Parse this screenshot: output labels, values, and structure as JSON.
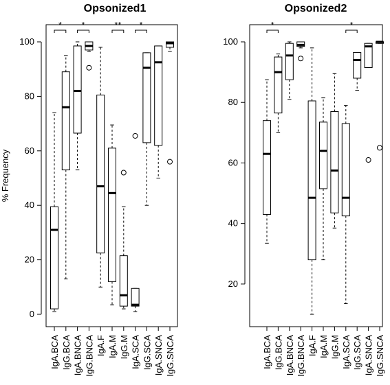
{
  "chart_data": [
    {
      "type": "boxplot",
      "title": "Opsonized1",
      "xlabel": "",
      "ylabel": "% Frequency",
      "ylim": [
        0,
        100
      ],
      "yticks": [
        0,
        20,
        40,
        60,
        80,
        100
      ],
      "categories": [
        "IgA.BCA",
        "IgG.BCA",
        "IgA.BNCA",
        "IgG.BNCA",
        "IgA.F",
        "IgA.M",
        "IgG.M",
        "IgA.SCA",
        "IgG.SCA",
        "IgA.SNCA",
        "IgG.SNCA"
      ],
      "boxes": [
        {
          "category": "IgA.BCA",
          "whisker_low": 1,
          "q1": 2,
          "median": 31,
          "q3": 39.5,
          "whisker_high": 74,
          "outliers": []
        },
        {
          "category": "IgG.BCA",
          "whisker_low": 13,
          "q1": 53,
          "median": 76,
          "q3": 89,
          "whisker_high": 95,
          "outliers": []
        },
        {
          "category": "IgA.BNCA",
          "whisker_low": 53,
          "q1": 66.5,
          "median": 82,
          "q3": 98.5,
          "whisker_high": 100,
          "outliers": []
        },
        {
          "category": "IgG.BNCA",
          "whisker_low": 96.5,
          "q1": 97,
          "median": 98.5,
          "q3": 100,
          "whisker_high": 100,
          "outliers": [
            90.5
          ]
        },
        {
          "category": "IgA.F",
          "whisker_low": 10,
          "q1": 22.5,
          "median": 47,
          "q3": 80.5,
          "whisker_high": 98,
          "outliers": []
        },
        {
          "category": "IgA.M",
          "whisker_low": 3.5,
          "q1": 12,
          "median": 44.5,
          "q3": 61,
          "whisker_high": 69.5,
          "outliers": []
        },
        {
          "category": "IgG.M",
          "whisker_low": 2,
          "q1": 3,
          "median": 7,
          "q3": 21.5,
          "whisker_high": 39.5,
          "outliers": [
            52
          ]
        },
        {
          "category": "IgA.SCA",
          "whisker_low": 1,
          "q1": 3,
          "median": 3.5,
          "q3": 9.5,
          "whisker_high": 9.5,
          "outliers": [
            65.5
          ]
        },
        {
          "category": "IgG.SCA",
          "whisker_low": 40,
          "q1": 63,
          "median": 90.5,
          "q3": 96,
          "whisker_high": 96,
          "outliers": []
        },
        {
          "category": "IgA.SNCA",
          "whisker_low": 50,
          "q1": 62,
          "median": 92.5,
          "q3": 98.5,
          "whisker_high": 98.5,
          "outliers": []
        },
        {
          "category": "IgG.SNCA",
          "whisker_low": 96.5,
          "q1": 98,
          "median": 99.5,
          "q3": 100,
          "whisker_high": 100,
          "outliers": [
            56
          ]
        }
      ],
      "annotations": [
        {
          "from": "IgA.BCA",
          "to": "IgG.BCA",
          "label": "*"
        },
        {
          "from": "IgA.BNCA",
          "to": "IgG.BNCA",
          "label": "*"
        },
        {
          "from": "IgA.M",
          "to": "IgG.M",
          "label": "**"
        },
        {
          "from": "IgA.SCA",
          "to": "IgG.SCA",
          "label": "*"
        }
      ]
    },
    {
      "type": "boxplot",
      "title": "Opsonized2",
      "xlabel": "",
      "ylabel": "",
      "ylim": [
        10,
        100
      ],
      "yticks": [
        20,
        40,
        60,
        80,
        100
      ],
      "categories": [
        "IgA.BCA",
        "IgG.BCA",
        "IgA.BNCA",
        "IgG.BNCA",
        "IgA.F",
        "IgA.M",
        "IgG.M",
        "IgA.SCA",
        "IgG.SCA",
        "IgA.SNCA",
        "IgG.SNCA"
      ],
      "boxes": [
        {
          "category": "IgA.BCA",
          "whisker_low": 33.5,
          "q1": 43,
          "median": 63,
          "q3": 74,
          "whisker_high": 87.5,
          "outliers": []
        },
        {
          "category": "IgG.BCA",
          "whisker_low": 70,
          "q1": 76.5,
          "median": 90,
          "q3": 95,
          "whisker_high": 96,
          "outliers": []
        },
        {
          "category": "IgA.BNCA",
          "whisker_low": 81,
          "q1": 87.5,
          "median": 95.5,
          "q3": 99.5,
          "whisker_high": 100,
          "outliers": []
        },
        {
          "category": "IgG.BNCA",
          "whisker_low": 98,
          "q1": 98.5,
          "median": 99,
          "q3": 100,
          "whisker_high": 100,
          "outliers": [
            94.5
          ]
        },
        {
          "category": "IgA.F",
          "whisker_low": 10,
          "q1": 28,
          "median": 48.5,
          "q3": 80.5,
          "whisker_high": 98,
          "outliers": []
        },
        {
          "category": "IgA.M",
          "whisker_low": 28,
          "q1": 51.5,
          "median": 64,
          "q3": 73.5,
          "whisker_high": 81.5,
          "outliers": []
        },
        {
          "category": "IgG.M",
          "whisker_low": 38.5,
          "q1": 43.5,
          "median": 57.5,
          "q3": 77,
          "whisker_high": 89.5,
          "outliers": []
        },
        {
          "category": "IgA.SCA",
          "whisker_low": 13.5,
          "q1": 42.5,
          "median": 48.5,
          "q3": 73,
          "whisker_high": 79,
          "outliers": []
        },
        {
          "category": "IgG.SCA",
          "whisker_low": 84,
          "q1": 88,
          "median": 94,
          "q3": 96.5,
          "whisker_high": 96.5,
          "outliers": []
        },
        {
          "category": "IgA.SNCA",
          "whisker_low": 91.5,
          "q1": 91.5,
          "median": 98.5,
          "q3": 99.5,
          "whisker_high": 99.5,
          "outliers": [
            61
          ]
        },
        {
          "category": "IgG.SNCA",
          "whisker_low": 99.5,
          "q1": 99.5,
          "median": 100,
          "q3": 100,
          "whisker_high": 100,
          "outliers": [
            65
          ]
        }
      ],
      "annotations": [
        {
          "from": "IgA.BCA",
          "to": "IgG.BCA",
          "label": "*"
        },
        {
          "from": "IgA.SCA",
          "to": "IgG.SCA",
          "label": "*"
        }
      ]
    }
  ]
}
